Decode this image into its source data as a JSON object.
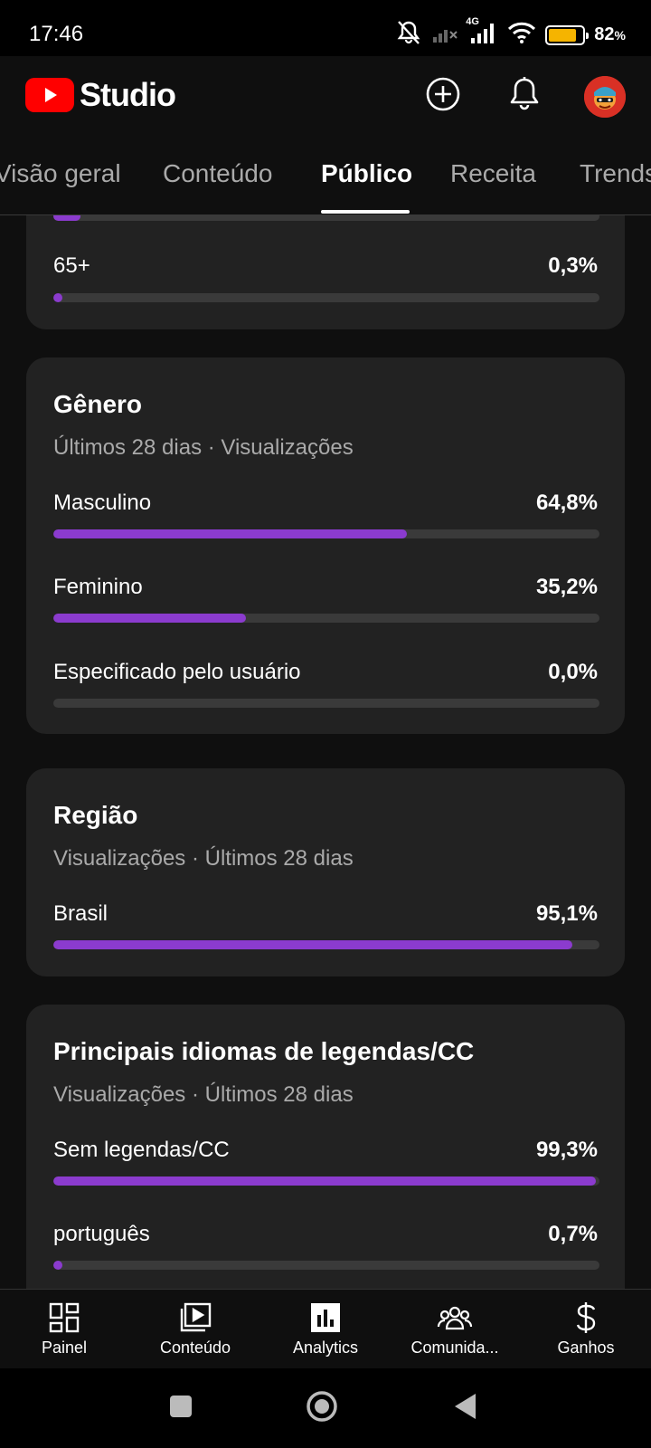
{
  "status_bar": {
    "time": "17:46",
    "network": "4G",
    "battery_percent": "82",
    "battery_unit": "%",
    "battery_level": 0.82,
    "battery_color": "#f5b400"
  },
  "header": {
    "logo_text": "Studio",
    "brand_color": "#ff0000",
    "icons": [
      "youtube-logo-icon",
      "create-plus-icon",
      "bell-icon",
      "avatar"
    ]
  },
  "tabs": [
    {
      "label": "Visão geral",
      "active": false
    },
    {
      "label": "Conteúdo",
      "active": false
    },
    {
      "label": "Público",
      "active": true
    },
    {
      "label": "Receita",
      "active": false
    },
    {
      "label": "Trends",
      "active": false
    }
  ],
  "age_card": {
    "rows": [
      {
        "label": "65+",
        "value": "0,3%",
        "fraction": 0.003
      }
    ]
  },
  "gender_card": {
    "title": "Gênero",
    "subtitle": "Últimos 28 dias · Visualizações",
    "rows": [
      {
        "label": "Masculino",
        "value": "64,8%",
        "fraction": 0.648
      },
      {
        "label": "Feminino",
        "value": "35,2%",
        "fraction": 0.352
      },
      {
        "label": "Especificado pelo usuário",
        "value": "0,0%",
        "fraction": 0.0
      }
    ]
  },
  "region_card": {
    "title": "Região",
    "subtitle": "Visualizações · Últimos 28 dias",
    "rows": [
      {
        "label": "Brasil",
        "value": "95,1%",
        "fraction": 0.951
      }
    ]
  },
  "captions_card": {
    "title": "Principais idiomas de legendas/CC",
    "subtitle": "Visualizações · Últimos 28 dias",
    "rows": [
      {
        "label": "Sem legendas/CC",
        "value": "99,3%",
        "fraction": 0.993
      },
      {
        "label": "português",
        "value": "0,7%",
        "fraction": 0.007
      }
    ]
  },
  "accent_color": "#8b3bce",
  "bottom_nav": [
    {
      "label": "Painel",
      "icon": "dashboard-icon"
    },
    {
      "label": "Conteúdo",
      "icon": "content-icon"
    },
    {
      "label": "Analytics",
      "icon": "analytics-icon"
    },
    {
      "label": "Comunida...",
      "icon": "community-icon"
    },
    {
      "label": "Ganhos",
      "icon": "dollar-icon"
    }
  ],
  "system_nav": [
    "recents-button",
    "home-button",
    "back-button"
  ]
}
